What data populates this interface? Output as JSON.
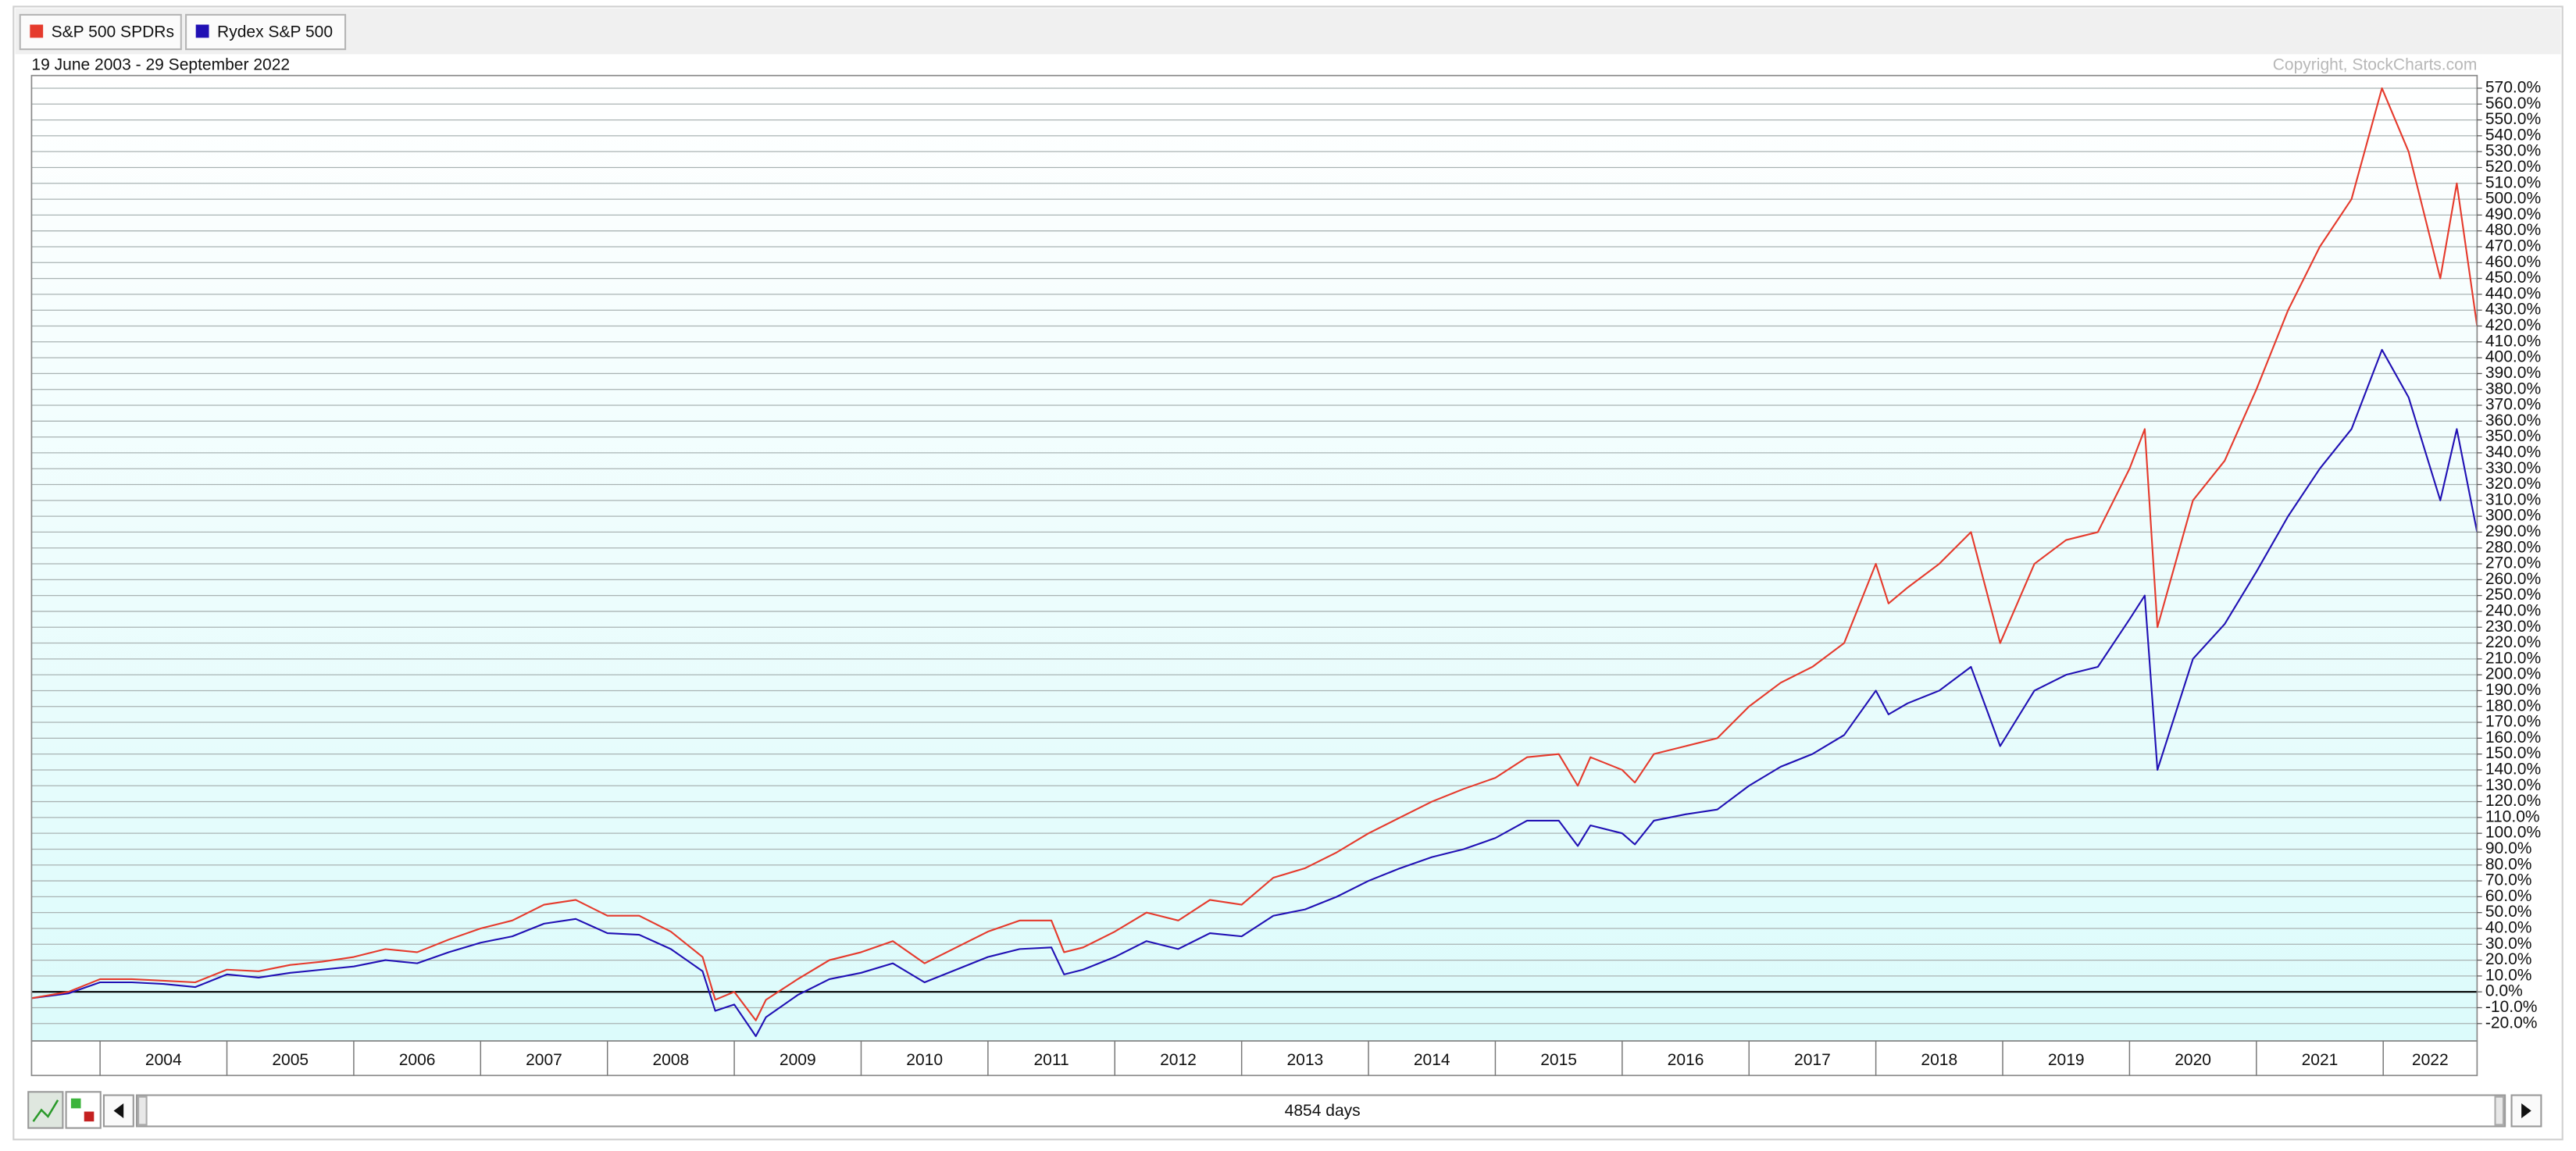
{
  "chart_data": {
    "type": "line",
    "subtitle": "19 June 2003 - 29 September 2022",
    "annotation": "Copyright, StockCharts.com",
    "x": [
      2003.46,
      2003.75,
      2004.0,
      2004.25,
      2004.5,
      2004.75,
      2005.0,
      2005.25,
      2005.5,
      2005.75,
      2006.0,
      2006.25,
      2006.5,
      2006.75,
      2007.0,
      2007.25,
      2007.5,
      2007.75,
      2008.0,
      2008.25,
      2008.5,
      2008.75,
      2008.85,
      2009.0,
      2009.17,
      2009.25,
      2009.5,
      2009.75,
      2010.0,
      2010.25,
      2010.5,
      2010.75,
      2011.0,
      2011.25,
      2011.5,
      2011.6,
      2011.75,
      2012.0,
      2012.25,
      2012.5,
      2012.75,
      2013.0,
      2013.25,
      2013.5,
      2013.75,
      2014.0,
      2014.25,
      2014.5,
      2014.75,
      2015.0,
      2015.25,
      2015.5,
      2015.65,
      2015.75,
      2016.0,
      2016.1,
      2016.25,
      2016.5,
      2016.75,
      2017.0,
      2017.25,
      2017.5,
      2017.75,
      2018.0,
      2018.1,
      2018.25,
      2018.5,
      2018.75,
      2018.98,
      2019.25,
      2019.5,
      2019.75,
      2020.0,
      2020.12,
      2020.22,
      2020.5,
      2020.75,
      2021.0,
      2021.25,
      2021.5,
      2021.75,
      2021.99,
      2022.2,
      2022.45,
      2022.58,
      2022.74
    ],
    "series": [
      {
        "name": "S&P 500 SPDRs",
        "color": "#e53a2c",
        "values": [
          -4,
          0,
          8,
          8,
          7,
          6,
          14,
          13,
          17,
          19,
          22,
          27,
          25,
          33,
          40,
          45,
          55,
          58,
          48,
          48,
          38,
          22,
          -5,
          0,
          -18,
          -5,
          8,
          20,
          25,
          32,
          18,
          28,
          38,
          45,
          45,
          25,
          28,
          38,
          50,
          45,
          58,
          55,
          72,
          78,
          88,
          100,
          110,
          120,
          128,
          135,
          148,
          150,
          130,
          148,
          140,
          132,
          150,
          155,
          160,
          180,
          195,
          205,
          220,
          270,
          245,
          255,
          270,
          290,
          220,
          270,
          285,
          290,
          330,
          355,
          230,
          310,
          335,
          380,
          430,
          470,
          500,
          570,
          530,
          450,
          510,
          420
        ]
      },
      {
        "name": "Rydex S&P 500",
        "color": "#2010b4",
        "values": [
          -4,
          -1,
          6,
          6,
          5,
          3,
          11,
          9,
          12,
          14,
          16,
          20,
          18,
          25,
          31,
          35,
          43,
          46,
          37,
          36,
          27,
          13,
          -12,
          -8,
          -28,
          -16,
          -2,
          8,
          12,
          18,
          6,
          14,
          22,
          27,
          28,
          11,
          14,
          22,
          32,
          27,
          37,
          35,
          48,
          52,
          60,
          70,
          78,
          85,
          90,
          97,
          108,
          108,
          92,
          105,
          100,
          93,
          108,
          112,
          115,
          130,
          142,
          150,
          162,
          190,
          175,
          182,
          190,
          205,
          155,
          190,
          200,
          205,
          235,
          250,
          140,
          210,
          232,
          265,
          300,
          330,
          355,
          405,
          375,
          310,
          355,
          290
        ]
      }
    ],
    "xlim": [
      2003.46,
      2022.74
    ],
    "xticks": [
      2004,
      2005,
      2006,
      2007,
      2008,
      2009,
      2010,
      2011,
      2012,
      2013,
      2014,
      2015,
      2016,
      2017,
      2018,
      2019,
      2020,
      2021,
      2022
    ],
    "ylim": [
      -31,
      578
    ],
    "yticks": [
      {
        "value": -20,
        "label": "-20.0%"
      },
      {
        "value": -10,
        "label": "-10.0%"
      },
      {
        "value": 0,
        "label": "0.0%"
      },
      {
        "value": 10,
        "label": "10.0%"
      },
      {
        "value": 20,
        "label": "20.0%"
      },
      {
        "value": 30,
        "label": "30.0%"
      },
      {
        "value": 40,
        "label": "40.0%"
      },
      {
        "value": 50,
        "label": "50.0%"
      },
      {
        "value": 60,
        "label": "60.0%"
      },
      {
        "value": 70,
        "label": "70.0%"
      },
      {
        "value": 80,
        "label": "80.0%"
      },
      {
        "value": 90,
        "label": "90.0%"
      },
      {
        "value": 100,
        "label": "100.0%"
      },
      {
        "value": 110,
        "label": "110.0%"
      },
      {
        "value": 120,
        "label": "120.0%"
      },
      {
        "value": 130,
        "label": "130.0%"
      },
      {
        "value": 140,
        "label": "140.0%"
      },
      {
        "value": 150,
        "label": "150.0%"
      },
      {
        "value": 160,
        "label": "160.0%"
      },
      {
        "value": 170,
        "label": "170.0%"
      },
      {
        "value": 180,
        "label": "180.0%"
      },
      {
        "value": 190,
        "label": "190.0%"
      },
      {
        "value": 200,
        "label": "200.0%"
      },
      {
        "value": 210,
        "label": "210.0%"
      },
      {
        "value": 220,
        "label": "220.0%"
      },
      {
        "value": 230,
        "label": "230.0%"
      },
      {
        "value": 240,
        "label": "240.0%"
      },
      {
        "value": 250,
        "label": "250.0%"
      },
      {
        "value": 260,
        "label": "260.0%"
      },
      {
        "value": 270,
        "label": "270.0%"
      },
      {
        "value": 280,
        "label": "280.0%"
      },
      {
        "value": 290,
        "label": "290.0%"
      },
      {
        "value": 300,
        "label": "300.0%"
      },
      {
        "value": 310,
        "label": "310.0%"
      },
      {
        "value": 320,
        "label": "320.0%"
      },
      {
        "value": 330,
        "label": "330.0%"
      },
      {
        "value": 340,
        "label": "340.0%"
      },
      {
        "value": 350,
        "label": "350.0%"
      },
      {
        "value": 360,
        "label": "360.0%"
      },
      {
        "value": 370,
        "label": "370.0%"
      },
      {
        "value": 380,
        "label": "380.0%"
      },
      {
        "value": 390,
        "label": "390.0%"
      },
      {
        "value": 400,
        "label": "400.0%"
      },
      {
        "value": 410,
        "label": "410.0%"
      },
      {
        "value": 420,
        "label": "420.0%"
      },
      {
        "value": 430,
        "label": "430.0%"
      },
      {
        "value": 440,
        "label": "440.0%"
      },
      {
        "value": 450,
        "label": "450.0%"
      },
      {
        "value": 460,
        "label": "460.0%"
      },
      {
        "value": 470,
        "label": "470.0%"
      },
      {
        "value": 480,
        "label": "480.0%"
      },
      {
        "value": 490,
        "label": "490.0%"
      },
      {
        "value": 500,
        "label": "500.0%"
      },
      {
        "value": 510,
        "label": "510.0%"
      },
      {
        "value": 520,
        "label": "520.0%"
      },
      {
        "value": 530,
        "label": "530.0%"
      },
      {
        "value": 540,
        "label": "540.0%"
      },
      {
        "value": 550,
        "label": "550.0%"
      },
      {
        "value": 560,
        "label": "560.0%"
      },
      {
        "value": 570,
        "label": "570.0%"
      }
    ],
    "grid": true,
    "zero_line": true
  },
  "ui": {
    "scrollbar_label": "4854 days"
  }
}
